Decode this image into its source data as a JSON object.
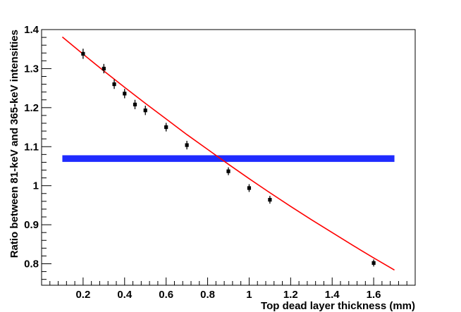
{
  "chart_data": {
    "type": "scatter",
    "title": "",
    "xlabel": "Top dead layer thickness (mm)",
    "ylabel": "Ratio between 81-keV and 365-keV intensities",
    "xlim": [
      0.0,
      1.8
    ],
    "ylim": [
      0.745,
      1.4
    ],
    "x_ticks": [
      0.2,
      0.4,
      0.6,
      0.8,
      1.0,
      1.2,
      1.4,
      1.6
    ],
    "x_tick_labels": [
      "0.2",
      "0.4",
      "0.6",
      "0.8",
      "1",
      "1.2",
      "1.4",
      "1.6"
    ],
    "y_ticks": [
      0.8,
      0.9,
      1.0,
      1.1,
      1.2,
      1.3,
      1.4
    ],
    "y_tick_labels": [
      "0.8",
      "0.9",
      "1",
      "1.1",
      "1.2",
      "1.3",
      "1.4"
    ],
    "grid": false,
    "series": [
      {
        "kind": "points",
        "color": "#000000",
        "points": [
          {
            "x": 0.2,
            "y": 1.338,
            "err": 0.013
          },
          {
            "x": 0.3,
            "y": 1.3,
            "err": 0.012
          },
          {
            "x": 0.35,
            "y": 1.26,
            "err": 0.012
          },
          {
            "x": 0.4,
            "y": 1.236,
            "err": 0.012
          },
          {
            "x": 0.45,
            "y": 1.208,
            "err": 0.012
          },
          {
            "x": 0.5,
            "y": 1.193,
            "err": 0.012
          },
          {
            "x": 0.6,
            "y": 1.15,
            "err": 0.011
          },
          {
            "x": 0.7,
            "y": 1.104,
            "err": 0.011
          },
          {
            "x": 0.9,
            "y": 1.037,
            "err": 0.01
          },
          {
            "x": 1.0,
            "y": 0.994,
            "err": 0.01
          },
          {
            "x": 1.1,
            "y": 0.964,
            "err": 0.01
          },
          {
            "x": 1.6,
            "y": 0.802,
            "err": 0.009
          }
        ]
      },
      {
        "kind": "fit-curve",
        "color": "#ff0000",
        "points": [
          {
            "x": 0.1,
            "y": 1.381
          },
          {
            "x": 0.2,
            "y": 1.337
          },
          {
            "x": 0.3,
            "y": 1.294
          },
          {
            "x": 0.4,
            "y": 1.252
          },
          {
            "x": 0.5,
            "y": 1.211
          },
          {
            "x": 0.6,
            "y": 1.171
          },
          {
            "x": 0.7,
            "y": 1.131
          },
          {
            "x": 0.8,
            "y": 1.093
          },
          {
            "x": 0.9,
            "y": 1.055
          },
          {
            "x": 1.0,
            "y": 1.018
          },
          {
            "x": 1.1,
            "y": 0.982
          },
          {
            "x": 1.2,
            "y": 0.947
          },
          {
            "x": 1.3,
            "y": 0.913
          },
          {
            "x": 1.4,
            "y": 0.88
          },
          {
            "x": 1.5,
            "y": 0.847
          },
          {
            "x": 1.6,
            "y": 0.815
          },
          {
            "x": 1.7,
            "y": 0.784
          }
        ]
      },
      {
        "kind": "band",
        "color": "#1f2bff",
        "x_range": [
          0.1,
          1.7
        ],
        "y_range": [
          1.061,
          1.078
        ]
      }
    ]
  }
}
